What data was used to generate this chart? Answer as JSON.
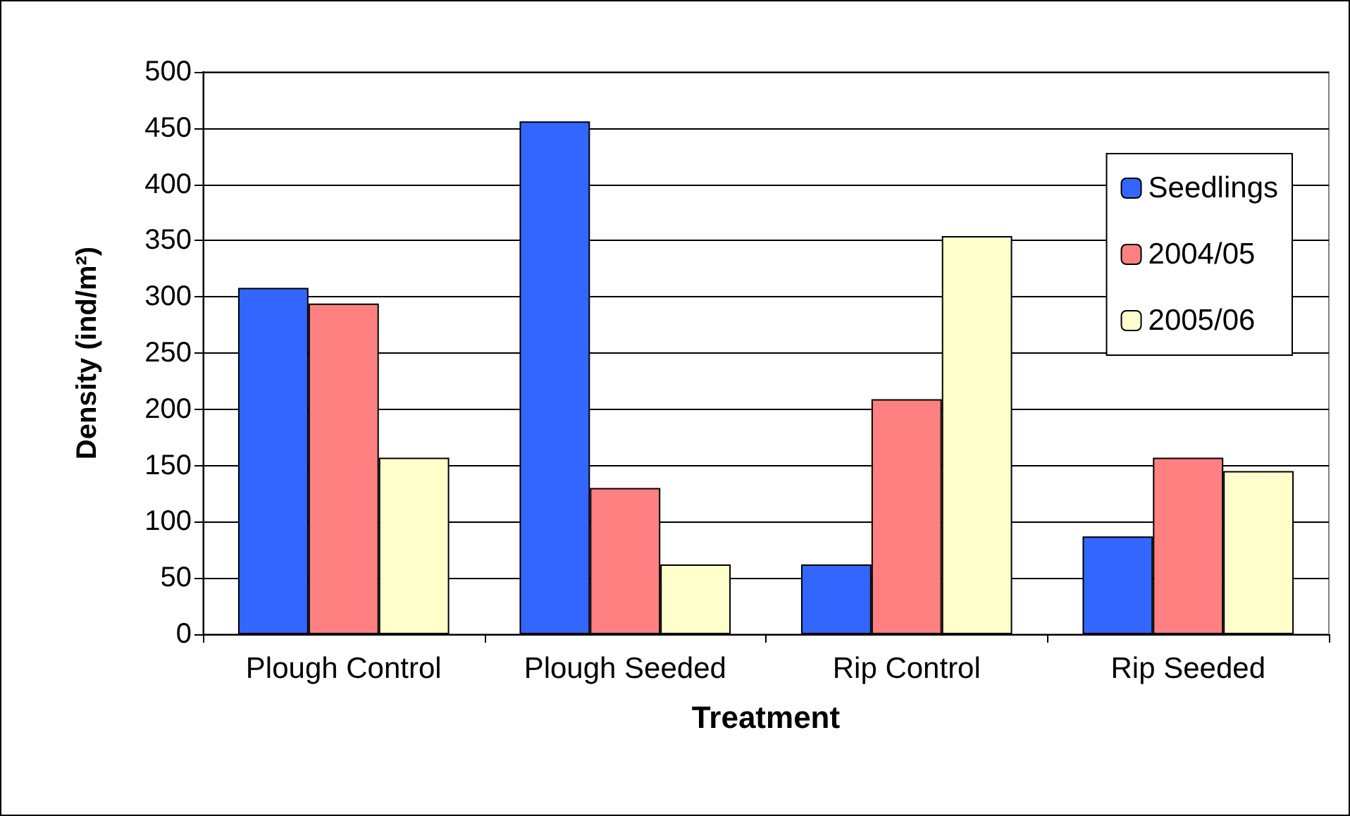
{
  "chart_data": {
    "type": "bar",
    "xlabel": "Treatment",
    "ylabel": "Density (ind/m²)",
    "categories": [
      "Plough Control",
      "Plough Seeded",
      "Rip Control",
      "Rip Seeded"
    ],
    "series": [
      {
        "name": "Seedlings",
        "color": "#3366ff",
        "values": [
          308,
          456,
          62,
          87
        ]
      },
      {
        "name": "2004/05",
        "color": "#ff8080",
        "values": [
          294,
          130,
          209,
          157
        ]
      },
      {
        "name": "2005/06",
        "color": "#ffffcc",
        "values": [
          157,
          62,
          354,
          145
        ]
      }
    ],
    "ylim": [
      0,
      500
    ],
    "yticks": [
      0,
      50,
      100,
      150,
      200,
      250,
      300,
      350,
      400,
      450,
      500
    ],
    "grid": "y",
    "legend": "right"
  }
}
